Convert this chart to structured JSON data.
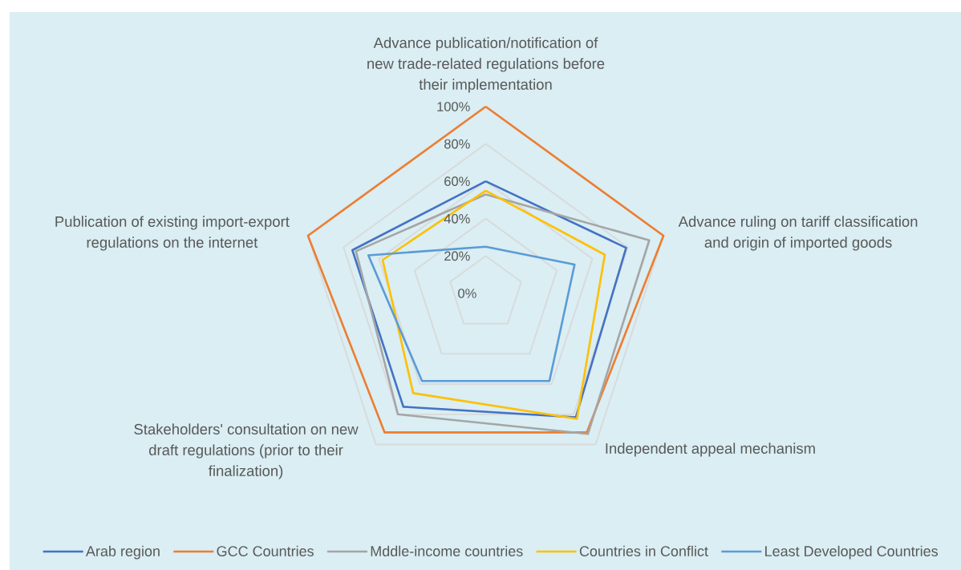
{
  "chart_data": {
    "type": "radar",
    "categories": [
      "Advance publication/notification of new trade-related regulations before their implementation",
      "Advance ruling on tariff classification and origin of imported goods",
      "Independent appeal mechanism",
      "Stakeholders' consultation on new draft regulations (prior to their finalization)",
      "Publication of existing import-export regulations on the internet"
    ],
    "series": [
      {
        "name": "Arab region",
        "color": "#4472c4",
        "values": [
          60,
          79,
          82,
          75,
          75
        ]
      },
      {
        "name": "GCC Countries",
        "color": "#ed7d31",
        "values": [
          100,
          100,
          92,
          92,
          100
        ]
      },
      {
        "name": "Mddle-income countries",
        "color": "#a5a5a5",
        "values": [
          53,
          92,
          93,
          80,
          73
        ]
      },
      {
        "name": "Countries in Conflict",
        "color": "#ffc000",
        "values": [
          55,
          67,
          83,
          66,
          58
        ]
      },
      {
        "name": "Least Developed Countries",
        "color": "#5b9bd5",
        "values": [
          25,
          50,
          58,
          58,
          66
        ]
      }
    ],
    "ylim": [
      0,
      100
    ],
    "yticks": [
      {
        "value": 0,
        "label": "0%"
      },
      {
        "value": 20,
        "label": "20%"
      },
      {
        "value": 40,
        "label": "40%"
      },
      {
        "value": 60,
        "label": "60%"
      },
      {
        "value": 80,
        "label": "80%"
      },
      {
        "value": 100,
        "label": "100%"
      }
    ],
    "grid": true,
    "legend": "bottom"
  }
}
